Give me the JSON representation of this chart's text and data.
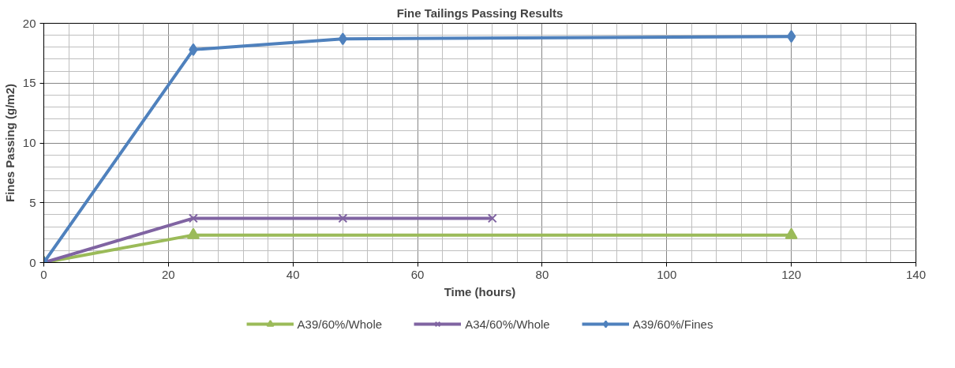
{
  "chart_data": {
    "type": "line",
    "title": "Fine Tailings Passing Results",
    "xlabel": "Time (hours)",
    "ylabel": "Fines Passing (g/m2)",
    "series": [
      {
        "name": "A39/60%/Whole",
        "color": "#9bbb59",
        "marker": "triangle",
        "x": [
          0,
          24,
          120
        ],
        "values": [
          0,
          2.3,
          2.3
        ]
      },
      {
        "name": "A34/60%/Whole",
        "color": "#8064a2",
        "marker": "cross",
        "x": [
          0,
          24,
          48,
          72
        ],
        "values": [
          0,
          3.7,
          3.7,
          3.7
        ]
      },
      {
        "name": "A39/60%/Fines",
        "color": "#4f81bd",
        "marker": "diamond",
        "x": [
          0,
          24,
          48,
          120
        ],
        "values": [
          0,
          17.8,
          18.7,
          18.9
        ]
      }
    ],
    "xlim": [
      0,
      140
    ],
    "xticks": [
      0,
      20,
      40,
      60,
      80,
      100,
      120,
      140
    ],
    "ylim": [
      0,
      20
    ],
    "yticks": [
      0,
      5,
      10,
      15,
      20
    ],
    "grid": true,
    "legend": "bottom",
    "line_style": "solid"
  }
}
